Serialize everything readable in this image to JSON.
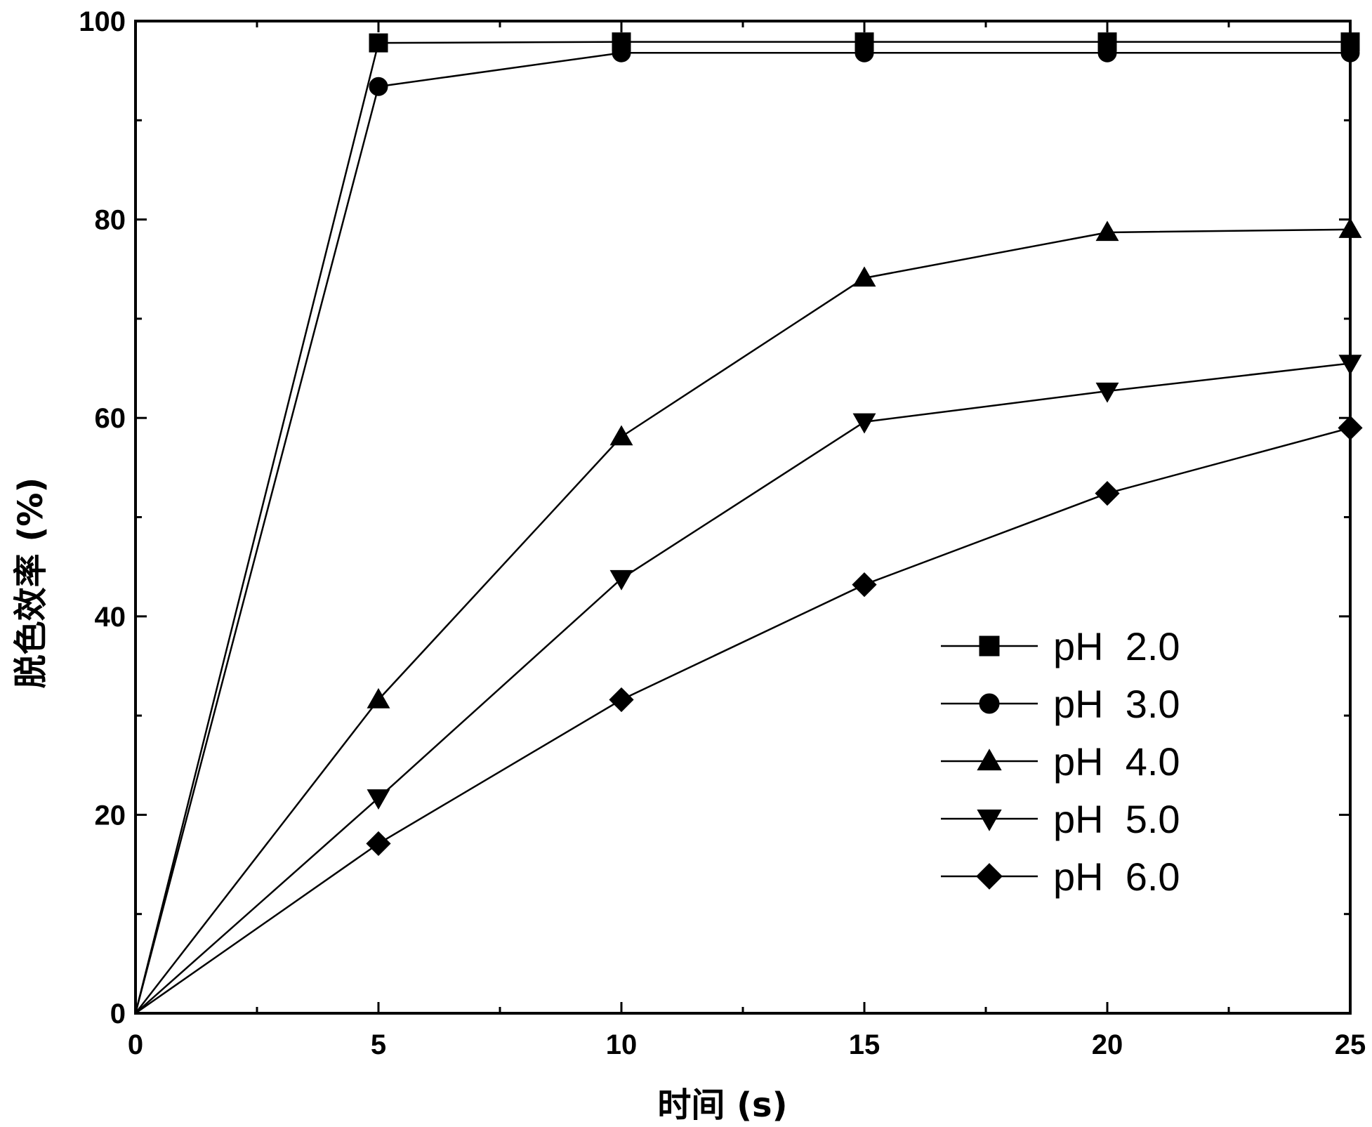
{
  "chart_data": {
    "type": "line",
    "xlabel": "时间 (s)",
    "ylabel": "脱色效率 (%)",
    "xlim": [
      0,
      25
    ],
    "ylim": [
      0,
      100
    ],
    "xticks": [
      0,
      5,
      10,
      15,
      20,
      25
    ],
    "yticks": [
      0,
      20,
      40,
      60,
      80,
      100
    ],
    "x": [
      0,
      5,
      10,
      15,
      20,
      25
    ],
    "series": [
      {
        "name": "pH  2.0",
        "marker": "square",
        "values": [
          0,
          97.8,
          97.9,
          97.9,
          97.9,
          97.9
        ]
      },
      {
        "name": "pH  3.0",
        "marker": "circle",
        "values": [
          0,
          93.4,
          96.8,
          96.8,
          96.8,
          96.8
        ]
      },
      {
        "name": "pH  4.0",
        "marker": "triangle-up",
        "values": [
          0,
          31.6,
          58.1,
          74.1,
          78.7,
          79.0
        ]
      },
      {
        "name": "pH  5.0",
        "marker": "triangle-down",
        "values": [
          0,
          21.7,
          43.8,
          59.6,
          62.7,
          65.5
        ]
      },
      {
        "name": "pH  6.0",
        "marker": "diamond",
        "values": [
          0,
          17.1,
          31.6,
          43.2,
          52.4,
          59.0
        ]
      }
    ],
    "grid": false,
    "legend_position": "bottom-right"
  }
}
